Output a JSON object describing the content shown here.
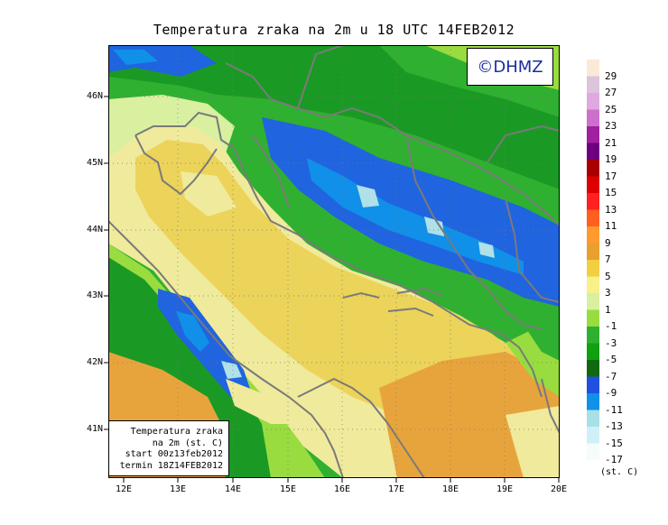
{
  "title": "Temperatura zraka na 2m u 18 UTC 14FEB2012",
  "logo": "©DHMZ",
  "info": {
    "line1": "Temperatura zraka",
    "line2": "na 2m (st. C)",
    "line3": "start 00z13feb2012",
    "line4": "termin 18Z14FEB2012"
  },
  "axes": {
    "lat_ticks": [
      "46N",
      "45N",
      "44N",
      "43N",
      "42N",
      "41N"
    ],
    "lon_ticks": [
      "12E",
      "13E",
      "14E",
      "15E",
      "16E",
      "17E",
      "18E",
      "19E",
      "20E"
    ]
  },
  "legend": {
    "labels": [
      "29",
      "27",
      "25",
      "23",
      "21",
      "19",
      "17",
      "15",
      "13",
      "11",
      "9",
      "7",
      "5",
      "3",
      "1",
      "-1",
      "-3",
      "-5",
      "-7",
      "-9",
      "-11",
      "-13",
      "-15",
      "-17"
    ],
    "colors": [
      "#fbe9d8",
      "#dcc4dc",
      "#e0a8e0",
      "#cc70cc",
      "#a020a0",
      "#6e0080",
      "#a80000",
      "#dc0000",
      "#ff2020",
      "#ff6020",
      "#ff9a30",
      "#e8a030",
      "#f0d040",
      "#f8f088",
      "#d8f0a0",
      "#98dc40",
      "#30b030",
      "#10a010",
      "#106810",
      "#2050e0",
      "#1090e8",
      "#a8e0e8",
      "#d0f0f8",
      "#f4fcfc"
    ],
    "unit": "(st. C)"
  },
  "colors": {
    "ocean": "#ecd35a",
    "coast_band": "#f0ea9c",
    "land_warm": "#e8a43c",
    "land_mild": "#f8ec90",
    "land_cool": "#9cdc44",
    "land_cold": "#30b030",
    "mountain": "#1a9a24",
    "high_mountain": "#2064e0",
    "peak": "#b0e0e8",
    "border": "#7a7a7a"
  }
}
